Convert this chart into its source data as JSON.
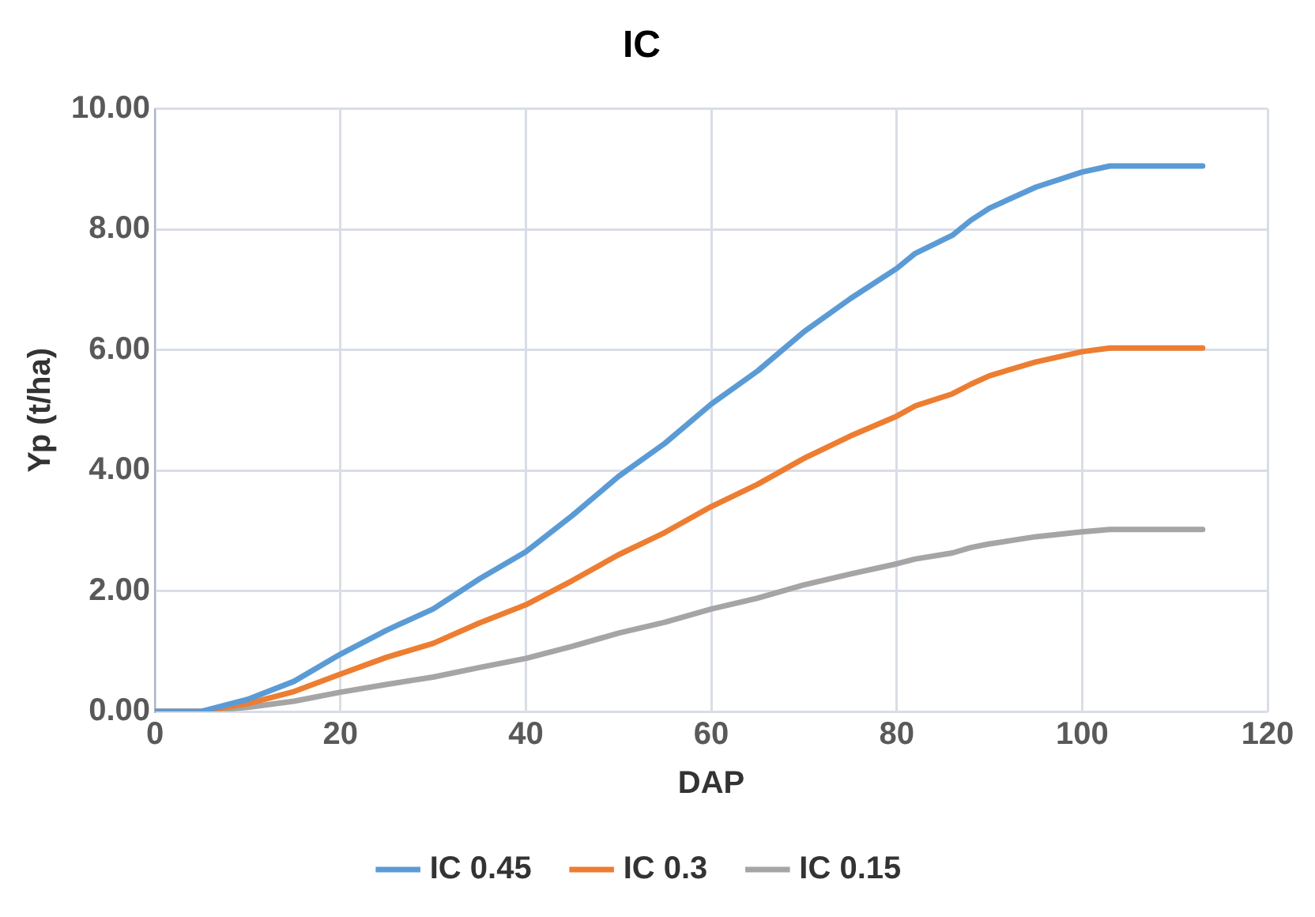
{
  "chart_data": {
    "type": "line",
    "title": "IC",
    "xlabel": "DAP",
    "ylabel": "Yp (t/ha)",
    "x": [
      0,
      5,
      10,
      15,
      20,
      25,
      30,
      35,
      40,
      45,
      50,
      55,
      60,
      65,
      70,
      75,
      80,
      82,
      86,
      88,
      90,
      95,
      100,
      103,
      113
    ],
    "series": [
      {
        "name": "IC 0.45",
        "color": "#5b9bd5",
        "values": [
          0,
          0,
          0.2,
          0.5,
          0.95,
          1.35,
          1.7,
          2.2,
          2.65,
          3.25,
          3.9,
          4.45,
          5.1,
          5.65,
          6.3,
          6.85,
          7.35,
          7.6,
          7.9,
          8.15,
          8.35,
          8.7,
          8.95,
          9.05,
          9.05
        ]
      },
      {
        "name": "IC 0.3",
        "color": "#ed7d31",
        "values": [
          0,
          0,
          0.13,
          0.33,
          0.62,
          0.9,
          1.13,
          1.47,
          1.77,
          2.17,
          2.6,
          2.97,
          3.4,
          3.77,
          4.2,
          4.57,
          4.9,
          5.07,
          5.27,
          5.43,
          5.57,
          5.8,
          5.97,
          6.03,
          6.03
        ]
      },
      {
        "name": "IC 0.15",
        "color": "#a5a5a5",
        "values": [
          0,
          0,
          0.07,
          0.17,
          0.32,
          0.45,
          0.57,
          0.73,
          0.88,
          1.08,
          1.3,
          1.48,
          1.7,
          1.88,
          2.1,
          2.28,
          2.45,
          2.53,
          2.63,
          2.72,
          2.78,
          2.9,
          2.98,
          3.02,
          3.02
        ]
      }
    ],
    "xlim": [
      0,
      120
    ],
    "xticks": [
      0,
      20,
      40,
      60,
      80,
      100,
      120
    ],
    "ylim": [
      0,
      10
    ],
    "yticks": [
      {
        "value": 0,
        "label": "0.00"
      },
      {
        "value": 2,
        "label": "2.00"
      },
      {
        "value": 4,
        "label": "4.00"
      },
      {
        "value": 6,
        "label": "6.00"
      },
      {
        "value": 8,
        "label": "8.00"
      },
      {
        "value": 10,
        "label": "10.00"
      }
    ],
    "grid": true,
    "legend": "bottom",
    "marker": "none",
    "line_style": "solid"
  }
}
